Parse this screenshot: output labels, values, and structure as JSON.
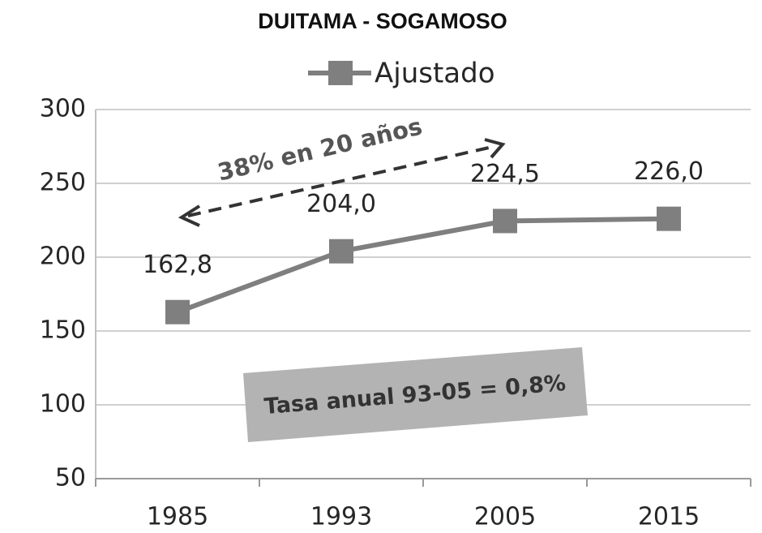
{
  "chart_data": {
    "type": "line",
    "title": "DUITAMA - SOGAMOSO",
    "categories": [
      "1985",
      "1993",
      "2005",
      "2015"
    ],
    "series": [
      {
        "name": "Ajustado",
        "color": "#7f7f7f",
        "values": [
          162.8,
          204.0,
          224.5,
          226.0
        ],
        "value_labels": [
          "162,8",
          "204,0",
          "224,5",
          "226,0"
        ]
      }
    ],
    "ylim": [
      50,
      300
    ],
    "yticks": [
      50,
      100,
      150,
      200,
      250,
      300
    ],
    "grid": true,
    "legend": "top",
    "annotations": [
      "38% en 20 años",
      "Tasa anual 93-05 = 0,8%"
    ]
  }
}
